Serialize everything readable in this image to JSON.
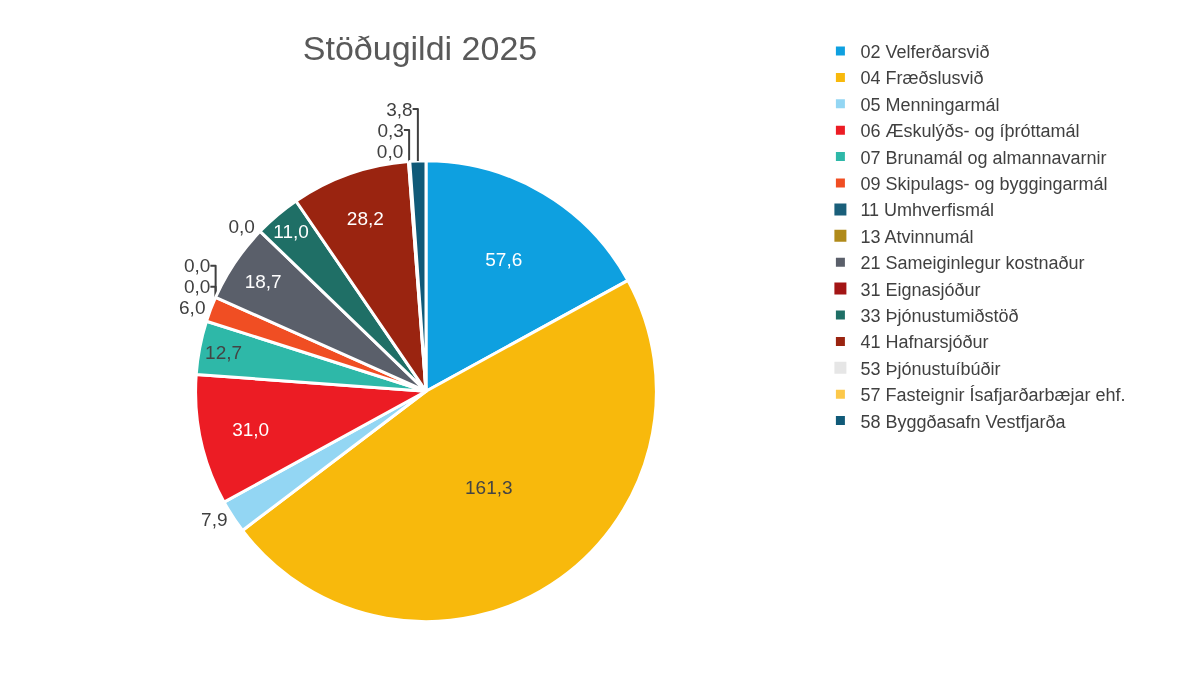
{
  "chart_data": {
    "type": "pie",
    "title": "Stöðugildi 2025",
    "categories": [
      "02 Velferðarsvið",
      "04 Fræðslusvið",
      "05 Menningarmál",
      "06 Æskulýðs- og íþróttamál",
      "07 Brunamál og almannavarnir",
      "09 Skipulags- og byggingarmál",
      "11 Umhverfismál",
      "13 Atvinnumál",
      "21 Sameiginlegur kostnaður",
      "31 Eignasjóður",
      "33 Þjónustumiðstöð",
      "41 Hafnarsjóður",
      "53 Þjónustuíbúðir",
      "57 Fasteignir Ísafjarðarbæjar ehf.",
      "58 Byggðasafn Vestfjarða"
    ],
    "values": [
      57.6,
      161.3,
      7.9,
      31.0,
      12.7,
      6.0,
      0.0,
      0.0,
      18.7,
      0.0,
      11.0,
      28.2,
      0.0,
      0.3,
      3.8
    ],
    "value_labels": [
      "57,6",
      "161,3",
      "7,9",
      "31,0",
      "12,7",
      "6,0",
      "0,0",
      "0,0",
      "18,7",
      "0,0",
      "11,0",
      "28,2",
      "0,0",
      "0,3",
      "3,8"
    ],
    "colors": [
      "#0ea0e0",
      "#f8b90c",
      "#93d6f3",
      "#ec1c24",
      "#2eb8a8",
      "#f04e23",
      "#1a5f7a",
      "#b08a1a",
      "#5a5f6a",
      "#a31515",
      "#1f6f66",
      "#9a2410",
      "#e6e6e6",
      "#fcc84a",
      "#105a78"
    ],
    "legend": "right"
  }
}
